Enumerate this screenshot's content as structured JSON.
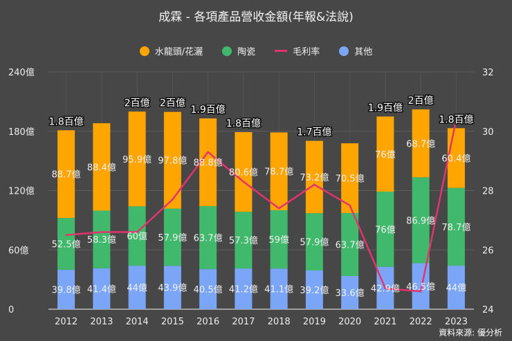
{
  "chart_data": {
    "type": "bar",
    "stacked": true,
    "title": "成霖 - 各項產品營收金額(年報&法說)",
    "categories": [
      "2012",
      "2013",
      "2014",
      "2015",
      "2016",
      "2017",
      "2018",
      "2019",
      "2020",
      "2021",
      "2022",
      "2023"
    ],
    "series": [
      {
        "name": "其他",
        "axis": "left",
        "color": "#7ba6f7",
        "values": [
          39.8,
          41.4,
          44,
          43.9,
          40.5,
          41.2,
          41.1,
          39.2,
          33.6,
          42.9,
          46.5,
          44
        ],
        "labels": [
          "39.8億",
          "41.4億",
          "44億",
          "43.9億",
          "40.5億",
          "41.2億",
          "41.1億",
          "39.2億",
          "33.6億",
          "42.9億",
          "46.5億",
          "44億"
        ]
      },
      {
        "name": "陶瓷",
        "axis": "left",
        "color": "#41b96c",
        "values": [
          52.5,
          58.3,
          60,
          57.9,
          63.7,
          57.3,
          59,
          57.9,
          63.7,
          76,
          86.9,
          78.7
        ],
        "labels": [
          "52.5億",
          "58.3億",
          "60億",
          "57.9億",
          "63.7億",
          "57.3億",
          "59億",
          "57.9億",
          "63.7億",
          "76億",
          "86.9億",
          "78.7億"
        ]
      },
      {
        "name": "水龍頭/花灑",
        "axis": "left",
        "color": "#ffa500",
        "values": [
          88.7,
          88.4,
          95.9,
          97.8,
          88.8,
          80.6,
          78.7,
          73.2,
          70.5,
          76,
          68.7,
          60.4
        ],
        "labels": [
          "88.7億",
          "88.4億",
          "95.9億",
          "97.8億",
          "88.8億",
          "80.6億",
          "78.7億",
          "73.2億",
          "70.5億",
          "76億",
          "68.7億",
          "60.4億"
        ]
      },
      {
        "name": "毛利率",
        "type": "line",
        "axis": "right",
        "color": "#e5336d",
        "values": [
          26.5,
          26.6,
          26.6,
          27.7,
          29.3,
          28.3,
          27.4,
          28.2,
          27.5,
          24.7,
          24.6,
          30.4
        ]
      }
    ],
    "totals_labels": [
      "1.8百億",
      "",
      "2百億",
      "2百億",
      "1.9百億",
      "1.8百億",
      "",
      "1.7百億",
      "",
      "1.9百億",
      "2百億",
      "1.8百億"
    ],
    "legend_order": [
      "水龍頭/花灑",
      "陶瓷",
      "毛利率",
      "其他"
    ],
    "legend_position": "top",
    "y_left": {
      "ylim": [
        0,
        240
      ],
      "ticks": [
        "0",
        "60億",
        "120億",
        "180億",
        "240億"
      ],
      "tick_values": [
        0,
        60,
        120,
        180,
        240
      ]
    },
    "y_right": {
      "ylim": [
        24,
        32
      ],
      "ticks": [
        "24",
        "26",
        "28",
        "30",
        "32"
      ],
      "tick_values": [
        24,
        26,
        28,
        30,
        32
      ]
    },
    "grid": true
  },
  "source": "資料來源: 優分析"
}
